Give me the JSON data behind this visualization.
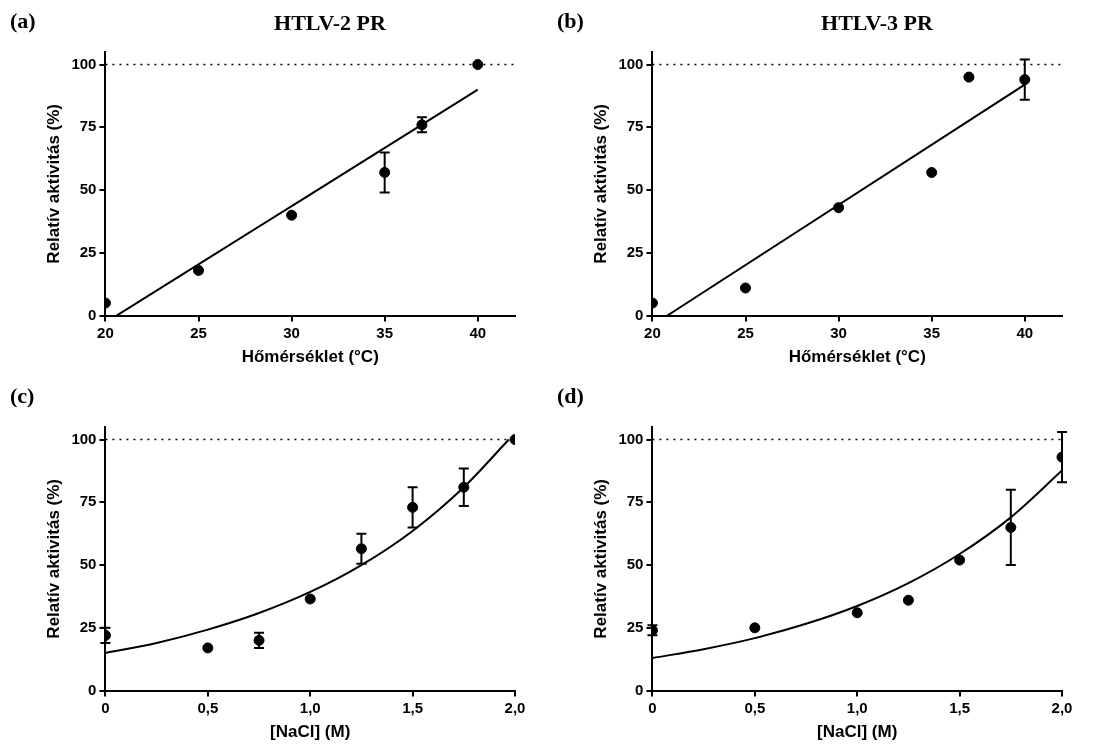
{
  "chart_data": [
    {
      "type": "scatter",
      "title": "HTLV-2 PR",
      "annotations": [
        "(a)"
      ],
      "xlabel": "Hőmérséklet (°C)",
      "ylabel": "Relatív aktivitás (%)",
      "xlim": [
        20,
        42
      ],
      "xticks": [
        20,
        25,
        30,
        35,
        40
      ],
      "ylim": [
        0,
        105
      ],
      "yticks": [
        0,
        25,
        50,
        75,
        100
      ],
      "grid": false,
      "legend": false,
      "marker": "circle",
      "ref_lines": [
        {
          "axis": "y",
          "value": 100,
          "line_style": "dotted",
          "color": "#000000"
        }
      ],
      "series": [
        {
          "color": "#000000",
          "x": [
            20,
            25,
            30,
            35,
            37,
            40
          ],
          "values": [
            5,
            18,
            40,
            57,
            76,
            100
          ],
          "errors": [
            null,
            null,
            null,
            8,
            3,
            null
          ]
        },
        {
          "type": "line",
          "color": "#000000",
          "marker": "none",
          "x": [
            20.6,
            40
          ],
          "values": [
            0,
            90
          ]
        }
      ]
    },
    {
      "type": "scatter",
      "title": "HTLV-3 PR",
      "annotations": [
        "(b)"
      ],
      "xlabel": "Hőmérséklet (°C)",
      "ylabel": "Relatív aktivitás (%)",
      "xlim": [
        20,
        42
      ],
      "xticks": [
        20,
        25,
        30,
        35,
        40
      ],
      "ylim": [
        0,
        105
      ],
      "yticks": [
        0,
        25,
        50,
        75,
        100
      ],
      "grid": false,
      "legend": false,
      "marker": "circle",
      "ref_lines": [
        {
          "axis": "y",
          "value": 100,
          "line_style": "dotted",
          "color": "#000000"
        }
      ],
      "series": [
        {
          "color": "#000000",
          "x": [
            20,
            25,
            30,
            35,
            37,
            40
          ],
          "values": [
            5,
            11,
            43,
            57,
            95,
            94
          ],
          "errors": [
            null,
            null,
            null,
            null,
            null,
            8
          ]
        },
        {
          "type": "line",
          "color": "#000000",
          "marker": "none",
          "x": [
            20.8,
            40
          ],
          "values": [
            0,
            92
          ]
        }
      ]
    },
    {
      "type": "scatter",
      "annotations": [
        "(c)"
      ],
      "xlabel": "[NaCl] (M)",
      "ylabel": "Relatív aktivitás (%)",
      "xlim": [
        0,
        2
      ],
      "xticks": [
        0,
        {
          "value": 0.5,
          "label": "0,5"
        },
        {
          "value": 1,
          "label": "1,0"
        },
        {
          "value": 1.5,
          "label": "1,5"
        },
        {
          "value": 2,
          "label": "2,0"
        }
      ],
      "ylim": [
        0,
        105
      ],
      "yticks": [
        0,
        25,
        50,
        75,
        100
      ],
      "grid": false,
      "legend": false,
      "marker": "circle",
      "ref_lines": [
        {
          "axis": "y",
          "value": 100,
          "line_style": "dotted",
          "color": "#000000"
        }
      ],
      "series": [
        {
          "color": "#000000",
          "x": [
            0,
            0.5,
            0.75,
            1,
            1.25,
            1.5,
            1.75,
            2
          ],
          "values": [
            22,
            17,
            20,
            36.5,
            56.5,
            73,
            81,
            100
          ],
          "errors": [
            3,
            null,
            3,
            null,
            6,
            8,
            7.5,
            null
          ]
        },
        {
          "type": "line",
          "color": "#000000",
          "marker": "none",
          "x": [
            0,
            0.25,
            0.5,
            0.75,
            1,
            1.25,
            1.5,
            1.75,
            1.97
          ],
          "values": [
            15,
            19,
            24.3,
            30.9,
            39.3,
            50,
            63.6,
            81,
            100
          ]
        }
      ]
    },
    {
      "type": "scatter",
      "annotations": [
        "(d)"
      ],
      "xlabel": "[NaCl] (M)",
      "ylabel": "Relatív aktivitás (%)",
      "xlim": [
        0,
        2
      ],
      "xticks": [
        0,
        {
          "value": 0.5,
          "label": "0,5"
        },
        {
          "value": 1,
          "label": "1,0"
        },
        {
          "value": 1.5,
          "label": "1,5"
        },
        {
          "value": 2,
          "label": "2,0"
        }
      ],
      "ylim": [
        0,
        105
      ],
      "yticks": [
        0,
        25,
        50,
        75,
        100
      ],
      "grid": false,
      "legend": false,
      "marker": "circle",
      "ref_lines": [
        {
          "axis": "y",
          "value": 100,
          "line_style": "dotted",
          "color": "#000000"
        }
      ],
      "series": [
        {
          "color": "#000000",
          "x": [
            0,
            0.5,
            1,
            1.25,
            1.5,
            1.75,
            2
          ],
          "values": [
            24,
            25,
            31,
            36,
            52,
            65,
            93
          ],
          "errors": [
            2,
            null,
            null,
            null,
            null,
            15,
            10
          ]
        },
        {
          "type": "line",
          "color": "#000000",
          "marker": "none",
          "x": [
            0,
            0.25,
            0.5,
            0.75,
            1,
            1.25,
            1.5,
            1.75,
            2
          ],
          "values": [
            13,
            16.5,
            20.9,
            26.6,
            33.7,
            42.8,
            54.4,
            69,
            87.7
          ]
        }
      ]
    }
  ]
}
